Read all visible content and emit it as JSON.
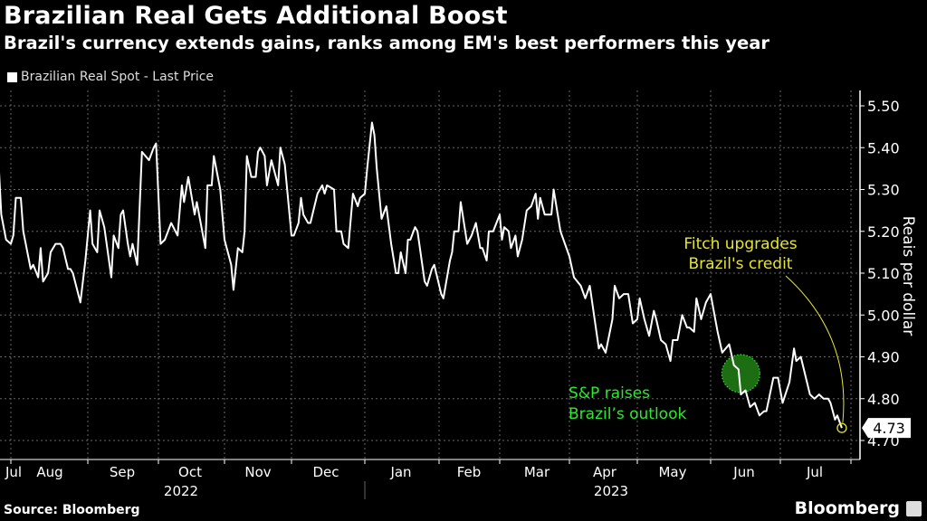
{
  "title": "Brazilian Real Gets Additional Boost",
  "subtitle": "Brazil's currency extends gains, ranks among EM's best performers this year",
  "legend": "Brazilian Real Spot - Last Price",
  "source": "Source: Bloomberg",
  "brand": "Bloomberg",
  "colors": {
    "background": "#000000",
    "line": "#ffffff",
    "fitch": "#e6e62e",
    "sp": "#2ee82e",
    "sp_marker": "#1d6e12"
  },
  "chart_data": {
    "type": "line",
    "ylabel": "Reais per dollar",
    "ylim": [
      4.7,
      5.5
    ],
    "yticks": [
      "5.50",
      "5.40",
      "5.30",
      "5.20",
      "5.10",
      "5.00",
      "4.90",
      "4.80",
      "4.70"
    ],
    "xticks": [
      "Jul",
      "Aug",
      "Sep",
      "Oct",
      "Nov",
      "Dec",
      "Jan",
      "Feb",
      "Mar",
      "Apr",
      "May",
      "Jun",
      "Jul"
    ],
    "years": [
      "2022",
      "2023"
    ],
    "grid": true,
    "legend_position": "top-left",
    "y_axis_side": "right",
    "last_value_label": "4.73",
    "annotations": [
      {
        "text": [
          "S&P raises",
          "Brazil’s outlook"
        ],
        "date": "2023-06-14",
        "value": 4.86,
        "color": "#2ee82e"
      },
      {
        "text": [
          "Fitch upgrades",
          "Brazil's credit"
        ],
        "date": "2023-07-28",
        "value": 4.73,
        "color": "#e6e62e"
      }
    ],
    "series": [
      {
        "x": [
          "2022-07-27",
          "2022-07-28",
          "2022-07-30",
          "2022-08-01",
          "2022-08-02",
          "2022-08-03",
          "2022-08-05",
          "2022-08-06",
          "2022-08-09",
          "2022-08-10",
          "2022-08-12",
          "2022-08-13",
          "2022-08-14",
          "2022-08-16",
          "2022-08-17",
          "2022-08-19",
          "2022-08-21",
          "2022-08-22",
          "2022-08-24",
          "2022-08-25",
          "2022-08-26",
          "2022-08-29",
          "2022-08-31",
          "2022-09-02",
          "2022-09-03",
          "2022-09-05",
          "2022-09-06",
          "2022-09-08",
          "2022-09-11",
          "2022-09-12",
          "2022-09-14",
          "2022-09-15",
          "2022-09-16",
          "2022-09-18",
          "2022-09-19",
          "2022-09-20",
          "2022-09-22",
          "2022-09-24",
          "2022-09-27",
          "2022-09-29",
          "2022-09-30",
          "2022-10-02",
          "2022-10-04",
          "2022-10-07",
          "2022-10-10",
          "2022-10-12",
          "2022-10-13",
          "2022-10-15",
          "2022-10-18",
          "2022-10-19",
          "2022-10-23",
          "2022-10-24",
          "2022-10-26",
          "2022-10-27",
          "2022-10-30",
          "2022-11-01",
          "2022-11-04",
          "2022-11-05",
          "2022-11-07",
          "2022-11-09",
          "2022-11-10",
          "2022-11-11",
          "2022-11-13",
          "2022-11-15",
          "2022-11-16",
          "2022-11-17",
          "2022-11-19",
          "2022-11-20",
          "2022-11-22",
          "2022-11-23",
          "2022-11-25",
          "2022-11-26",
          "2022-11-28",
          "2022-12-01",
          "2022-12-02",
          "2022-12-04",
          "2022-12-05",
          "2022-12-06",
          "2022-12-08",
          "2022-12-09",
          "2022-12-12",
          "2022-12-14",
          "2022-12-15",
          "2022-12-16",
          "2022-12-19",
          "2022-12-20",
          "2022-12-22",
          "2022-12-23",
          "2022-12-25",
          "2022-12-27",
          "2022-12-29",
          "2022-12-30",
          "2023-01-01",
          "2023-01-02",
          "2023-01-04",
          "2023-01-05",
          "2023-01-06",
          "2023-01-08",
          "2023-01-10",
          "2023-01-12",
          "2023-01-14",
          "2023-01-15",
          "2023-01-16",
          "2023-01-18",
          "2023-01-19",
          "2023-01-20",
          "2023-01-22",
          "2023-01-23",
          "2023-01-26",
          "2023-01-27",
          "2023-01-29",
          "2023-01-30",
          "2023-02-02",
          "2023-02-03",
          "2023-02-06",
          "2023-02-07",
          "2023-02-08",
          "2023-02-10",
          "2023-02-11",
          "2023-02-14",
          "2023-02-16",
          "2023-02-18",
          "2023-02-20",
          "2023-02-21",
          "2023-02-23",
          "2023-02-24",
          "2023-02-26",
          "2023-03-01",
          "2023-03-02",
          "2023-03-03",
          "2023-03-05",
          "2023-03-06",
          "2023-03-08",
          "2023-03-09",
          "2023-03-11",
          "2023-03-13",
          "2023-03-15",
          "2023-03-17",
          "2023-03-18",
          "2023-03-19",
          "2023-03-21",
          "2023-03-23",
          "2023-03-24",
          "2023-03-25",
          "2023-03-28",
          "2023-04-01",
          "2023-04-03",
          "2023-04-06",
          "2023-04-08",
          "2023-04-10",
          "2023-04-14",
          "2023-04-15",
          "2023-04-17",
          "2023-04-20",
          "2023-04-21",
          "2023-04-23",
          "2023-04-25",
          "2023-04-27",
          "2023-04-29",
          "2023-05-01",
          "2023-05-02",
          "2023-05-04",
          "2023-05-06",
          "2023-05-08",
          "2023-05-09",
          "2023-05-11",
          "2023-05-13",
          "2023-05-15",
          "2023-05-16",
          "2023-05-18",
          "2023-05-20",
          "2023-05-22",
          "2023-05-23",
          "2023-05-25",
          "2023-05-26",
          "2023-05-28",
          "2023-05-30",
          "2023-06-01",
          "2023-06-04",
          "2023-06-06",
          "2023-06-09",
          "2023-06-11",
          "2023-06-13",
          "2023-06-14",
          "2023-06-16",
          "2023-06-18",
          "2023-06-20",
          "2023-06-22",
          "2023-06-24",
          "2023-06-25",
          "2023-06-28",
          "2023-06-30",
          "2023-07-02",
          "2023-07-05",
          "2023-07-07",
          "2023-07-08",
          "2023-07-10",
          "2023-07-14",
          "2023-07-16",
          "2023-07-18",
          "2023-07-20",
          "2023-07-22",
          "2023-07-23",
          "2023-07-25",
          "2023-07-26",
          "2023-07-28"
        ],
        "y": [
          5.35,
          5.24,
          5.18,
          5.17,
          5.19,
          5.28,
          5.28,
          5.2,
          5.11,
          5.12,
          5.09,
          5.16,
          5.08,
          5.1,
          5.15,
          5.17,
          5.17,
          5.16,
          5.11,
          5.11,
          5.1,
          5.03,
          5.13,
          5.25,
          5.17,
          5.15,
          5.25,
          5.21,
          5.09,
          5.19,
          5.16,
          5.24,
          5.25,
          5.17,
          5.14,
          5.17,
          5.12,
          5.39,
          5.37,
          5.4,
          5.41,
          5.17,
          5.18,
          5.22,
          5.19,
          5.31,
          5.27,
          5.33,
          5.24,
          5.27,
          5.16,
          5.31,
          5.31,
          5.38,
          5.3,
          5.18,
          5.12,
          5.06,
          5.16,
          5.15,
          5.2,
          5.38,
          5.33,
          5.33,
          5.39,
          5.4,
          5.38,
          5.31,
          5.37,
          5.35,
          5.31,
          5.4,
          5.36,
          5.19,
          5.19,
          5.22,
          5.28,
          5.24,
          5.22,
          5.22,
          5.29,
          5.31,
          5.29,
          5.31,
          5.3,
          5.2,
          5.2,
          5.17,
          5.16,
          5.29,
          5.26,
          5.28,
          5.29,
          5.35,
          5.46,
          5.43,
          5.35,
          5.23,
          5.26,
          5.17,
          5.1,
          5.1,
          5.15,
          5.1,
          5.18,
          5.18,
          5.21,
          5.2,
          5.08,
          5.07,
          5.11,
          5.12,
          5.05,
          5.04,
          5.13,
          5.15,
          5.2,
          5.2,
          5.27,
          5.17,
          5.19,
          5.22,
          5.16,
          5.16,
          5.13,
          5.2,
          5.2,
          5.24,
          5.18,
          5.21,
          5.2,
          5.16,
          5.19,
          5.14,
          5.18,
          5.25,
          5.26,
          5.29,
          5.23,
          5.28,
          5.24,
          5.24,
          5.24,
          5.3,
          5.2,
          5.14,
          5.09,
          5.07,
          5.04,
          5.07,
          4.92,
          4.93,
          4.91,
          4.99,
          5.07,
          5.04,
          5.05,
          5.05,
          4.98,
          4.99,
          5.04,
          4.99,
          4.95,
          5.01,
          4.99,
          4.94,
          4.93,
          4.89,
          4.94,
          4.94,
          5.0,
          4.97,
          4.97,
          4.96,
          5.04,
          4.99,
          5.03,
          5.05,
          4.96,
          4.91,
          4.93,
          4.88,
          4.87,
          4.81,
          4.82,
          4.78,
          4.79,
          4.76,
          4.77,
          4.77,
          4.85,
          4.85,
          4.79,
          4.84,
          4.92,
          4.89,
          4.9,
          4.81,
          4.8,
          4.81,
          4.8,
          4.8,
          4.79,
          4.75,
          4.76,
          4.73
        ]
      }
    ]
  }
}
